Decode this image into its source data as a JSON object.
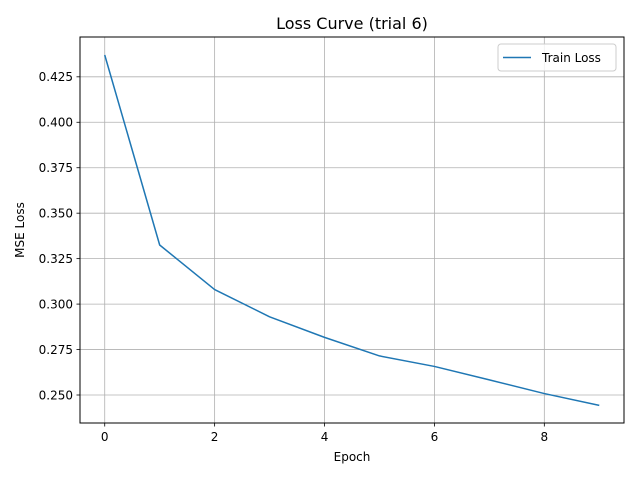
{
  "chart_data": {
    "type": "line",
    "title": "Loss Curve (trial 6)",
    "xlabel": "Epoch",
    "ylabel": "MSE Loss",
    "xlim": [
      -0.45,
      9.45
    ],
    "ylim": [
      0.2346,
      0.4469
    ],
    "xticks": [
      0,
      2,
      4,
      6,
      8
    ],
    "yticks": [
      0.25,
      0.275,
      0.3,
      0.325,
      0.35,
      0.375,
      0.4,
      0.425
    ],
    "xtick_labels": [
      "0",
      "2",
      "4",
      "6",
      "8"
    ],
    "ytick_labels": [
      "0.250",
      "0.275",
      "0.300",
      "0.325",
      "0.350",
      "0.375",
      "0.400",
      "0.425"
    ],
    "grid": true,
    "legend_position": "top-right",
    "series": [
      {
        "name": "Train Loss",
        "color": "#1f77b4",
        "x": [
          0,
          1,
          2,
          3,
          4,
          5,
          6,
          7,
          8,
          9
        ],
        "y": [
          0.437,
          0.3325,
          0.308,
          0.293,
          0.2817,
          0.2715,
          0.2657,
          0.2583,
          0.2508,
          0.2443
        ]
      }
    ]
  }
}
